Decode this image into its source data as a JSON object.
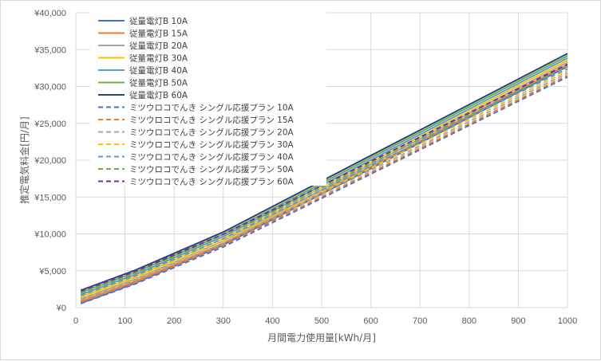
{
  "chart_data": {
    "type": "line",
    "title": "",
    "xlabel": "月間電力使用量[kWh/月]",
    "ylabel": "推定電気料金[円/月]",
    "xlim": [
      0,
      1000
    ],
    "ylim": [
      0,
      40000
    ],
    "x_ticks": [
      "0",
      "100",
      "200",
      "300",
      "400",
      "500",
      "600",
      "700",
      "800",
      "900",
      "1000"
    ],
    "y_ticks": [
      "¥0",
      "¥5,000",
      "¥10,000",
      "¥15,000",
      "¥20,000",
      "¥25,000",
      "¥30,000",
      "¥35,000",
      "¥40,000"
    ],
    "grid": true,
    "legend_position": "top-left inside",
    "x": [
      10,
      120,
      300,
      1000
    ],
    "series": [
      {
        "name": "従量電灯B 10A",
        "color": "#4472c4",
        "dash": false,
        "values": [
          600,
          3300,
          8500,
          32700
        ]
      },
      {
        "name": "従量電灯B 15A",
        "color": "#ed7d31",
        "dash": false,
        "values": [
          850,
          3550,
          8750,
          32950
        ]
      },
      {
        "name": "従量電灯B 20A",
        "color": "#a5a5a5",
        "dash": false,
        "values": [
          1150,
          3850,
          9050,
          33250
        ]
      },
      {
        "name": "従量電灯B 30A",
        "color": "#ffc000",
        "dash": false,
        "values": [
          1450,
          4150,
          9350,
          33550
        ]
      },
      {
        "name": "従量電灯B 40A",
        "color": "#5b9bd5",
        "dash": false,
        "values": [
          1750,
          4450,
          9650,
          33850
        ]
      },
      {
        "name": "従量電灯B 50A",
        "color": "#70ad47",
        "dash": false,
        "values": [
          2050,
          4750,
          9950,
          34150
        ]
      },
      {
        "name": "従量電灯B 60A",
        "color": "#264478",
        "dash": false,
        "values": [
          2350,
          5050,
          10250,
          34450
        ]
      },
      {
        "name": "ミツウロコでんき シングル応援プラン 10A",
        "color": "#4472c4",
        "dash": true,
        "values": [
          550,
          3200,
          8250,
          31300
        ]
      },
      {
        "name": "ミツウロコでんき シングル応援プラン 15A",
        "color": "#ed7d31",
        "dash": true,
        "values": [
          750,
          3400,
          8450,
          31500
        ]
      },
      {
        "name": "ミツウロコでんき シングル応援プラン 20A",
        "color": "#a5a5a5",
        "dash": true,
        "values": [
          1050,
          3700,
          8750,
          31800
        ]
      },
      {
        "name": "ミツウロコでんき シングル応援プラン 30A",
        "color": "#ffc000",
        "dash": true,
        "values": [
          1350,
          4000,
          9050,
          32100
        ]
      },
      {
        "name": "ミツウロコでんき シングル応援プラン 40A",
        "color": "#5b9bd5",
        "dash": true,
        "values": [
          1650,
          4300,
          9350,
          32400
        ]
      },
      {
        "name": "ミツウロコでんき シングル応援プラン 50A",
        "color": "#70ad47",
        "dash": true,
        "values": [
          1950,
          4600,
          9650,
          32700
        ]
      },
      {
        "name": "ミツウロコでんき シングル応援プラン 60A",
        "color": "#7030a0",
        "dash": true,
        "values": [
          2250,
          4900,
          9950,
          33000
        ]
      }
    ]
  }
}
